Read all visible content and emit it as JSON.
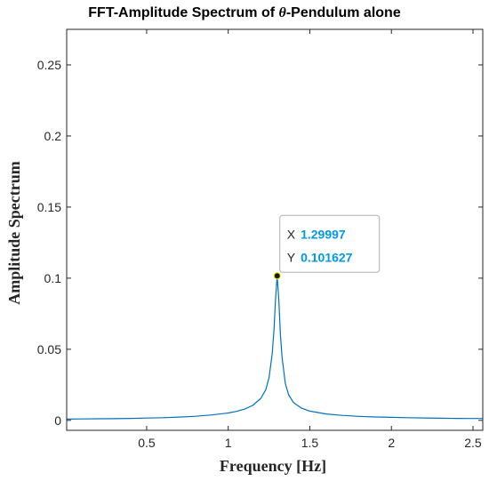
{
  "chart_data": {
    "type": "line",
    "title_prefix": "FFT-Amplitude Spectrum of ",
    "title_symbol": "θ",
    "title_suffix": "-Pendulum alone",
    "xlabel": "Frequency [Hz]",
    "ylabel": "Amplitude Spectrum",
    "xlim": [
      0.01,
      2.56
    ],
    "ylim": [
      -0.007,
      0.275
    ],
    "xticks": [
      0.5,
      1,
      1.5,
      2,
      2.5
    ],
    "xtick_labels": [
      "0.5",
      "1",
      "1.5",
      "2",
      "2.5"
    ],
    "yticks": [
      0,
      0.05,
      0.1,
      0.15,
      0.2,
      0.25
    ],
    "ytick_labels": [
      "0",
      "0.05",
      "0.1",
      "0.15",
      "0.2",
      "0.25"
    ],
    "grid": false,
    "line_color": "#0072BD",
    "series": [
      {
        "x": [
          0.01,
          0.1,
          0.2,
          0.3,
          0.4,
          0.5,
          0.6,
          0.7,
          0.8,
          0.9,
          1.0,
          1.05,
          1.1,
          1.15,
          1.2,
          1.23,
          1.25,
          1.27,
          1.28,
          1.29,
          1.29997,
          1.31,
          1.32,
          1.33,
          1.35,
          1.37,
          1.4,
          1.45,
          1.5,
          1.6,
          1.7,
          1.8,
          1.9,
          2.0,
          2.1,
          2.2,
          2.3,
          2.4,
          2.5,
          2.56
        ],
        "values": [
          0.0009,
          0.001,
          0.0011,
          0.0012,
          0.0014,
          0.0016,
          0.0019,
          0.0023,
          0.0029,
          0.0038,
          0.0052,
          0.0063,
          0.0079,
          0.0105,
          0.0155,
          0.0215,
          0.03,
          0.047,
          0.063,
          0.085,
          0.101627,
          0.085,
          0.06,
          0.044,
          0.026,
          0.018,
          0.0125,
          0.0085,
          0.0065,
          0.0045,
          0.0035,
          0.0028,
          0.0024,
          0.0021,
          0.0019,
          0.0017,
          0.0015,
          0.0014,
          0.0013,
          0.0013
        ]
      }
    ],
    "datatip": {
      "x_label": "X",
      "x_value": "1.29997",
      "y_label": "Y",
      "y_value": "0.101627",
      "x": 1.29997,
      "y": 0.101627,
      "value_color": "#0099E6"
    }
  }
}
